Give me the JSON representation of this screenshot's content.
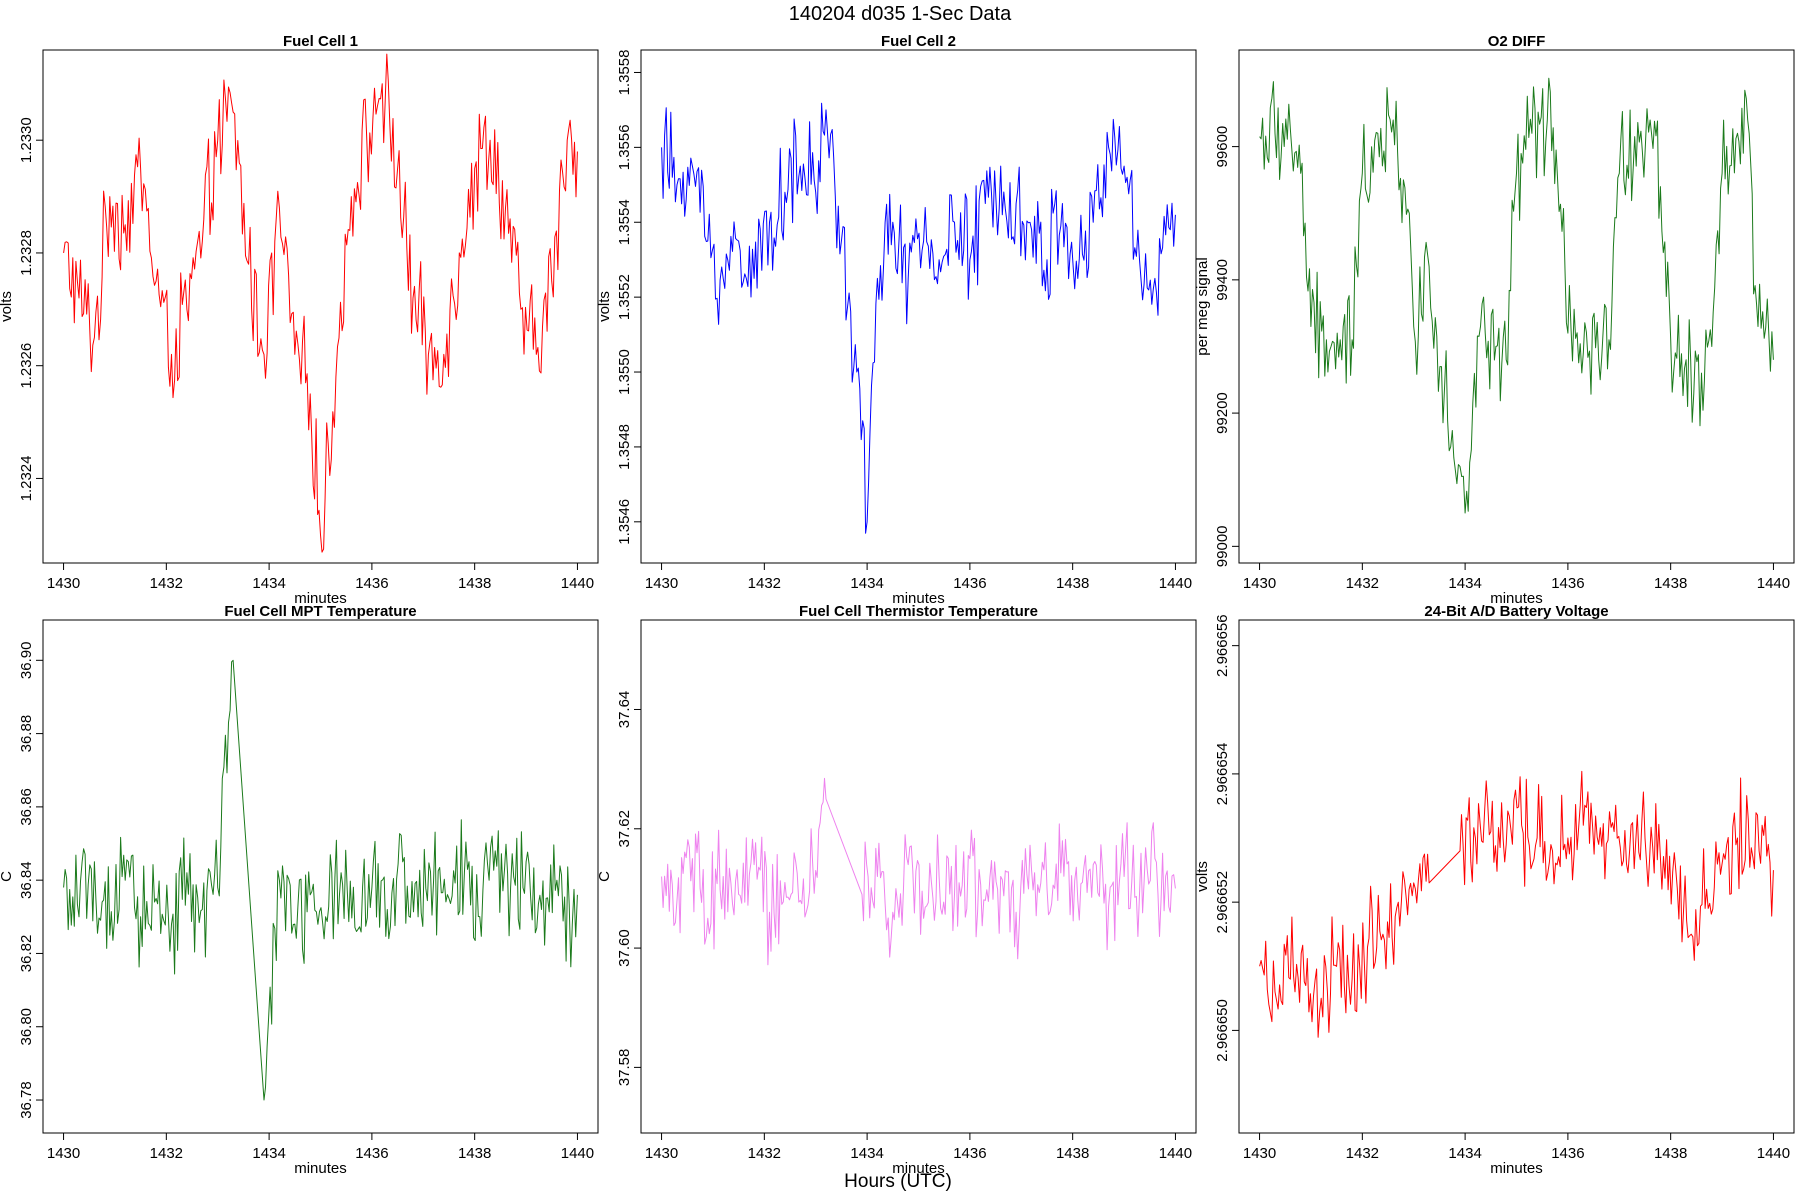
{
  "figure": {
    "title": "140204   d035   1-Sec Data",
    "outer_xlabel": "Hours (UTC)"
  },
  "chart_data": [
    {
      "type": "line",
      "title": "Fuel Cell 1",
      "xlabel": "minutes",
      "ylabel": "volts",
      "color": "#ff0000",
      "xlim": [
        1429.6,
        1440.4
      ],
      "ylim": [
        1.23225,
        1.23316
      ],
      "xticks": [
        1430,
        1432,
        1434,
        1436,
        1438,
        1440
      ],
      "yticks": [
        1.2324,
        1.2326,
        1.2328,
        1.233
      ],
      "ytick_labels": [
        "1.2324",
        "1.2326",
        "1.2328",
        "1.2330"
      ],
      "xtick_labels": [
        "1430",
        "1432",
        "1434",
        "1436",
        "1438",
        "1440"
      ],
      "series": [
        {
          "x": [
            1430.0,
            1430.3,
            1430.6,
            1430.9,
            1431.2,
            1431.5,
            1431.8,
            1432.1,
            1432.4,
            1432.7,
            1433.0,
            1433.3,
            1433.6,
            1433.9,
            1434.2,
            1434.5,
            1434.8,
            1435.0,
            1435.3,
            1435.6,
            1435.9,
            1436.2,
            1436.5,
            1436.8,
            1437.1,
            1437.4,
            1437.7,
            1438.0,
            1438.3,
            1438.6,
            1438.9,
            1439.2,
            1439.5,
            1439.8,
            1440.0
          ],
          "y": [
            1.2328,
            1.23272,
            1.23265,
            1.2329,
            1.23285,
            1.23295,
            1.23275,
            1.23262,
            1.2327,
            1.23282,
            1.233,
            1.23305,
            1.23278,
            1.23262,
            1.23288,
            1.23262,
            1.23255,
            1.2323,
            1.23258,
            1.2329,
            1.233,
            1.2331,
            1.23295,
            1.23272,
            1.23262,
            1.23262,
            1.2328,
            1.23295,
            1.233,
            1.23288,
            1.2327,
            1.23262,
            1.23275,
            1.233,
            1.23298
          ]
        }
      ]
    },
    {
      "type": "line",
      "title": "Fuel Cell 2",
      "xlabel": "minutes",
      "ylabel": "volts",
      "color": "#0000ff",
      "xlim": [
        1429.6,
        1440.4
      ],
      "ylim": [
        1.35449,
        1.35586
      ],
      "xticks": [
        1430,
        1432,
        1434,
        1436,
        1438,
        1440
      ],
      "yticks": [
        1.3546,
        1.3548,
        1.355,
        1.3552,
        1.3554,
        1.3556,
        1.3558
      ],
      "ytick_labels": [
        "1.3546",
        "1.3548",
        "1.3550",
        "1.3552",
        "1.3554",
        "1.3556",
        "1.3558"
      ],
      "xtick_labels": [
        "1430",
        "1432",
        "1434",
        "1436",
        "1438",
        "1440"
      ],
      "series": [
        {
          "x": [
            1430.0,
            1430.3,
            1430.6,
            1430.9,
            1431.2,
            1431.5,
            1431.8,
            1432.1,
            1432.4,
            1432.7,
            1433.0,
            1433.2,
            1433.5,
            1433.8,
            1434.0,
            1434.2,
            1434.5,
            1434.8,
            1435.1,
            1435.4,
            1435.7,
            1436.0,
            1436.3,
            1436.6,
            1436.9,
            1437.2,
            1437.5,
            1437.8,
            1438.1,
            1438.4,
            1438.7,
            1439.0,
            1439.3,
            1439.6,
            1439.9,
            1440.0
          ],
          "y": [
            1.3556,
            1.3555,
            1.35555,
            1.35535,
            1.35525,
            1.35535,
            1.35525,
            1.3554,
            1.35548,
            1.35555,
            1.35548,
            1.3557,
            1.35535,
            1.355,
            1.3546,
            1.35525,
            1.3554,
            1.35525,
            1.35535,
            1.3553,
            1.3554,
            1.3553,
            1.35545,
            1.35555,
            1.35545,
            1.35538,
            1.3553,
            1.35545,
            1.35525,
            1.3554,
            1.3556,
            1.35555,
            1.3553,
            1.35525,
            1.35538,
            1.35542
          ]
        }
      ]
    },
    {
      "type": "line",
      "title": "O2 DIFF",
      "xlabel": "minutes",
      "ylabel": "per meg signal",
      "color": "#1b7a1b",
      "xlim": [
        1429.6,
        1440.4
      ],
      "ylim": [
        98975,
        99745
      ],
      "xticks": [
        1430,
        1432,
        1434,
        1436,
        1438,
        1440
      ],
      "yticks": [
        99000,
        99200,
        99400,
        99600
      ],
      "ytick_labels": [
        "99000",
        "99200",
        "99400",
        "99600"
      ],
      "xtick_labels": [
        "1430",
        "1432",
        "1434",
        "1436",
        "1438",
        "1440"
      ],
      "series": [
        {
          "x": [
            1430.0,
            1430.3,
            1430.6,
            1430.8,
            1431.0,
            1431.3,
            1431.6,
            1431.8,
            1432.0,
            1432.3,
            1432.6,
            1432.8,
            1433.0,
            1433.3,
            1433.6,
            1433.9,
            1434.0,
            1434.3,
            1434.6,
            1434.8,
            1435.0,
            1435.3,
            1435.6,
            1435.8,
            1436.0,
            1436.3,
            1436.6,
            1436.8,
            1437.0,
            1437.3,
            1437.6,
            1437.8,
            1438.0,
            1438.3,
            1438.6,
            1438.8,
            1439.0,
            1439.3,
            1439.5,
            1439.7,
            1440.0
          ],
          "y": [
            99615,
            99620,
            99625,
            99560,
            99330,
            99310,
            99280,
            99310,
            99560,
            99620,
            99640,
            99550,
            99330,
            99420,
            99240,
            99120,
            99050,
            99330,
            99300,
            99280,
            99560,
            99620,
            99640,
            99550,
            99320,
            99290,
            99280,
            99310,
            99560,
            99615,
            99640,
            99540,
            99310,
            99280,
            99260,
            99300,
            99560,
            99620,
            99640,
            99330,
            99280
          ]
        }
      ]
    },
    {
      "type": "line",
      "title": "Fuel Cell MPT Temperature",
      "xlabel": "minutes",
      "ylabel": "C",
      "color": "#1b7a1b",
      "xlim": [
        1429.6,
        1440.4
      ],
      "ylim": [
        36.771,
        36.911
      ],
      "xticks": [
        1430,
        1432,
        1434,
        1436,
        1438,
        1440
      ],
      "yticks": [
        36.78,
        36.8,
        36.82,
        36.84,
        36.86,
        36.88,
        36.9
      ],
      "ytick_labels": [
        "36.78",
        "36.80",
        "36.82",
        "36.84",
        "36.86",
        "36.88",
        "36.90"
      ],
      "xtick_labels": [
        "1430",
        "1432",
        "1434",
        "1436",
        "1438",
        "1440"
      ],
      "series": [
        {
          "x": [
            1430.0,
            1430.3,
            1430.6,
            1430.9,
            1431.2,
            1431.5,
            1431.8,
            1432.1,
            1432.4,
            1432.7,
            1433.0,
            1433.3,
            1433.9,
            1434.2,
            1434.5,
            1434.8,
            1435.1,
            1435.4,
            1435.7,
            1436.0,
            1436.3,
            1436.6,
            1436.9,
            1437.2,
            1437.5,
            1437.8,
            1438.1,
            1438.4,
            1438.7,
            1439.0,
            1439.3,
            1439.6,
            1439.9,
            1440.0
          ],
          "y": [
            36.838,
            36.83,
            36.845,
            36.825,
            36.84,
            36.83,
            36.835,
            36.828,
            36.842,
            36.832,
            36.838,
            36.9,
            36.78,
            36.84,
            36.828,
            36.836,
            36.83,
            36.842,
            36.826,
            36.838,
            36.832,
            36.845,
            36.83,
            36.84,
            36.835,
            36.842,
            36.83,
            36.848,
            36.838,
            36.845,
            36.832,
            36.84,
            36.828,
            36.836
          ]
        }
      ]
    },
    {
      "type": "line",
      "title": "Fuel Cell Thermistor Temperature",
      "xlabel": "minutes",
      "ylabel": "C",
      "color": "#ee82ee",
      "xlim": [
        1429.6,
        1440.4
      ],
      "ylim": [
        37.569,
        37.655
      ],
      "xticks": [
        1430,
        1432,
        1434,
        1436,
        1438,
        1440
      ],
      "yticks": [
        37.58,
        37.6,
        37.62,
        37.64
      ],
      "ytick_labels": [
        "37.58",
        "37.60",
        "37.62",
        "37.64"
      ],
      "xtick_labels": [
        "1430",
        "1432",
        "1434",
        "1436",
        "1438",
        "1440"
      ],
      "series": [
        {
          "x": [
            1430.0,
            1430.3,
            1430.6,
            1430.9,
            1431.2,
            1431.5,
            1431.8,
            1432.1,
            1432.4,
            1432.7,
            1433.0,
            1433.2,
            1433.9,
            1434.2,
            1434.5,
            1434.8,
            1435.1,
            1435.4,
            1435.7,
            1436.0,
            1436.3,
            1436.6,
            1436.9,
            1437.2,
            1437.5,
            1437.8,
            1438.1,
            1438.4,
            1438.7,
            1439.0,
            1439.3,
            1439.6,
            1439.9,
            1440.0
          ],
          "y": [
            37.612,
            37.608,
            37.615,
            37.605,
            37.612,
            37.609,
            37.614,
            37.606,
            37.611,
            37.608,
            37.613,
            37.625,
            37.609,
            37.612,
            37.606,
            37.614,
            37.605,
            37.612,
            37.609,
            37.615,
            37.608,
            37.612,
            37.606,
            37.613,
            37.61,
            37.618,
            37.608,
            37.614,
            37.607,
            37.612,
            37.609,
            37.615,
            37.606,
            37.61
          ]
        }
      ]
    },
    {
      "type": "line",
      "title": "24-Bit A/D Battery Voltage",
      "xlabel": "minutes",
      "ylabel": "volts",
      "color": "#ff0000",
      "xlim": [
        1429.6,
        1440.4
      ],
      "ylim": [
        2.9666484,
        2.9666564
      ],
      "xticks": [
        1430,
        1432,
        1434,
        1436,
        1438,
        1440
      ],
      "yticks": [
        2.96665,
        2.966652,
        2.966654,
        2.966656
      ],
      "ytick_labels": [
        "2.966650",
        "2.966652",
        "2.966654",
        "2.966656"
      ],
      "xtick_labels": [
        "1430",
        "1432",
        "1434",
        "1436",
        "1438",
        "1440"
      ],
      "series": [
        {
          "x": [
            1430.0,
            1430.3,
            1430.6,
            1430.9,
            1431.2,
            1431.5,
            1431.8,
            1432.1,
            1432.4,
            1432.7,
            1433.0,
            1433.3,
            1433.9,
            1434.2,
            1434.5,
            1434.8,
            1435.1,
            1435.4,
            1435.7,
            1436.0,
            1436.3,
            1436.6,
            1436.9,
            1437.2,
            1437.5,
            1437.8,
            1438.1,
            1438.4,
            1438.7,
            1439.0,
            1439.3,
            1439.6,
            1439.9,
            1440.0
          ],
          "y": [
            2.966651,
            2.9666506,
            2.9666508,
            2.9666507,
            2.9666505,
            2.966651,
            2.9666508,
            2.9666513,
            2.9666515,
            2.966652,
            2.9666523,
            2.9666523,
            2.9666528,
            2.966653,
            2.9666531,
            2.9666529,
            2.9666532,
            2.966653,
            2.9666528,
            2.966653,
            2.9666532,
            2.9666529,
            2.9666531,
            2.9666528,
            2.966653,
            2.9666527,
            2.9666525,
            2.9666515,
            2.9666522,
            2.9666526,
            2.966653,
            2.9666527,
            2.9666529,
            2.9666525
          ]
        }
      ]
    }
  ]
}
